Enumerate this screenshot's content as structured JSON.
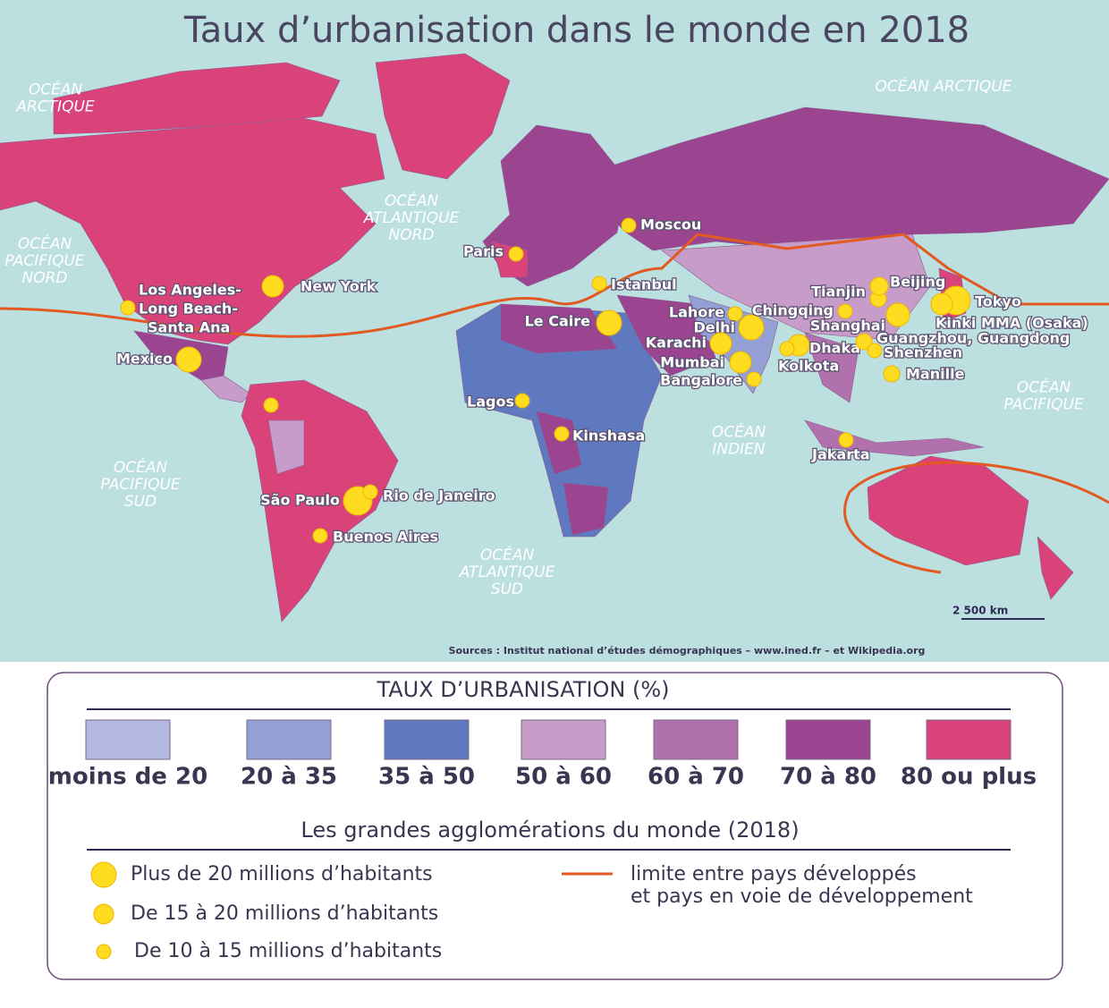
{
  "title": "Taux d’urbanisation dans le monde en 2018",
  "oceans": [
    {
      "lines": [
        "OCÉAN",
        "ARCTIQUE"
      ]
    },
    {
      "lines": [
        "OCÉAN ARCTIQUE"
      ]
    },
    {
      "lines": [
        "OCÉAN",
        "PACIFIQUE",
        "NORD"
      ]
    },
    {
      "lines": [
        "OCÉAN",
        "ATLANTIQUE",
        "NORD"
      ]
    },
    {
      "lines": [
        "OCÉAN",
        "PACIFIQUE",
        "SUD"
      ]
    },
    {
      "lines": [
        "OCÉAN",
        "ATLANTIQUE",
        "SUD"
      ]
    },
    {
      "lines": [
        "OCÉAN",
        "INDIEN"
      ]
    },
    {
      "lines": [
        "OCÉAN",
        "PACIFIQUE"
      ]
    }
  ],
  "cities": [
    {
      "lines": [
        "Moscou"
      ]
    },
    {
      "lines": [
        "Paris"
      ]
    },
    {
      "lines": [
        "Istanbul"
      ]
    },
    {
      "lines": [
        "New York"
      ]
    },
    {
      "lines": [
        "Los Angeles-",
        "Long Beach-",
        "Santa Ana"
      ]
    },
    {
      "lines": [
        "Mexico"
      ]
    },
    {
      "lines": [
        "Le Caire"
      ]
    },
    {
      "lines": [
        "Lagos"
      ]
    },
    {
      "lines": [
        "Kinshasa"
      ]
    },
    {
      "lines": [
        "São Paulo"
      ]
    },
    {
      "lines": [
        "Rio de Janeiro"
      ]
    },
    {
      "lines": [
        "Buenos Aires"
      ]
    },
    {
      "lines": [
        "Lahore"
      ]
    },
    {
      "lines": [
        "Delhi"
      ]
    },
    {
      "lines": [
        "Chingqing"
      ]
    },
    {
      "lines": [
        "Karachi"
      ]
    },
    {
      "lines": [
        "Mumbai"
      ]
    },
    {
      "lines": [
        "Bangalore"
      ]
    },
    {
      "lines": [
        "Dhaka"
      ]
    },
    {
      "lines": [
        "Kolkota"
      ]
    },
    {
      "lines": [
        "Tianjin"
      ]
    },
    {
      "lines": [
        "Beijing"
      ]
    },
    {
      "lines": [
        "Shanghai"
      ]
    },
    {
      "lines": [
        "Tokyo"
      ]
    },
    {
      "lines": [
        "Kinki MMA (Osaka)"
      ]
    },
    {
      "lines": [
        "Guangzhou, Guangdong"
      ]
    },
    {
      "lines": [
        "Shenzhen"
      ]
    },
    {
      "lines": [
        "Manille"
      ]
    },
    {
      "lines": [
        "Jakarta"
      ]
    }
  ],
  "scale": "2 500 km",
  "sources": "Sources : Institut national d’études démographiques – www.ined.fr – et Wikipedia.org",
  "legend": {
    "title": "TAUX D’URBANISATION (%)",
    "classes": [
      {
        "label": "moins de 20",
        "color": "#b3b8e0"
      },
      {
        "label": "20 à 35",
        "color": "#94a0d4"
      },
      {
        "label": "35 à 50",
        "color": "#5f79c0"
      },
      {
        "label": "50 à 60",
        "color": "#c79cc8"
      },
      {
        "label": "60 à 70",
        "color": "#b071ad"
      },
      {
        "label": "70 à 80",
        "color": "#9b4591"
      },
      {
        "label": "80 ou plus",
        "color": "#d9437a"
      }
    ],
    "cities_title": "Les grandes agglomérations du monde (2018)",
    "sizes": [
      "Plus de 20 millions d’habitants",
      "De 15 à 20 millions d’habitants",
      "De 10 à 15 millions d’habitants"
    ],
    "line": [
      "limite entre pays développés",
      "et pays en voie de développement"
    ]
  }
}
